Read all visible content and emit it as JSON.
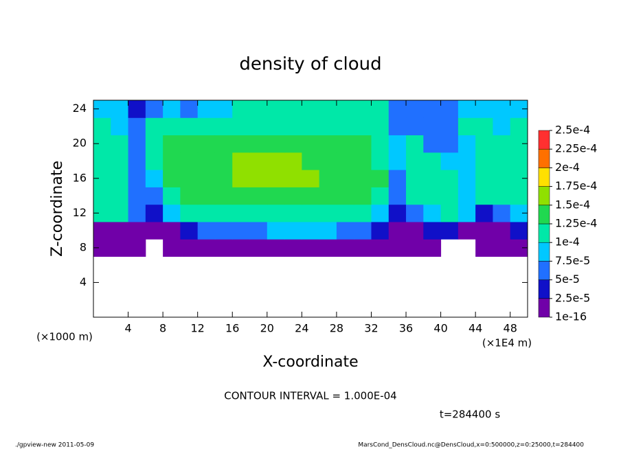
{
  "chart_data": {
    "type": "heatmap",
    "title": "density of cloud",
    "x_label": "X-coordinate",
    "y_label": "Z-coordinate",
    "x_unit_label": "(×1E4 m)",
    "y_unit_label": "(×1000 m)",
    "annotations": [
      "CONTOUR INTERVAL = 1.000E-04",
      "t=284400 s"
    ],
    "footer_left": "./gpview-new  2011-05-09",
    "footer_right": "MarsCond_DensCloud.nc@DensCloud,x=0:500000,z=0:25000,t=284400",
    "xlim": [
      0,
      50
    ],
    "ylim": [
      0,
      25
    ],
    "xticks": [
      4,
      8,
      12,
      16,
      20,
      24,
      28,
      32,
      36,
      40,
      44,
      48
    ],
    "yticks": [
      4,
      8,
      12,
      16,
      20,
      24
    ],
    "x": [
      1,
      3,
      5,
      7,
      9,
      11,
      13,
      15,
      17,
      19,
      21,
      23,
      25,
      27,
      29,
      31,
      33,
      35,
      37,
      39,
      41,
      43,
      45,
      47,
      49
    ],
    "z": [
      8,
      10,
      12,
      14,
      16,
      18,
      20,
      22,
      24
    ],
    "values": [
      [
        1e-05,
        1e-05,
        1e-05,
        null,
        1e-05,
        1e-05,
        1e-05,
        1e-05,
        1e-05,
        1e-05,
        1e-05,
        1e-05,
        1e-05,
        1e-05,
        1e-05,
        1e-05,
        1e-05,
        1e-05,
        1e-05,
        1e-05,
        null,
        null,
        1e-05,
        1e-05,
        1e-05
      ],
      [
        2e-05,
        2e-05,
        1e-05,
        1e-05,
        2e-05,
        3e-05,
        6e-05,
        6e-05,
        7e-05,
        7e-05,
        8e-05,
        8e-05,
        8e-05,
        8e-05,
        7e-05,
        6e-05,
        3e-05,
        2e-05,
        2e-05,
        4e-05,
        3e-05,
        2e-05,
        2e-05,
        2e-05,
        3e-05
      ],
      [
        0.00011,
        0.00011,
        6e-05,
        4e-05,
        8e-05,
        0.00011,
        0.00011,
        0.00011,
        0.00011,
        0.00011,
        0.00011,
        0.00011,
        0.00011,
        0.00011,
        0.00011,
        0.00011,
        9e-05,
        4e-05,
        6e-05,
        8e-05,
        0.0001,
        9e-05,
        3e-05,
        6e-05,
        9e-05
      ],
      [
        0.00012,
        0.00012,
        6e-05,
        5e-05,
        0.00012,
        0.00013,
        0.00013,
        0.00013,
        0.00013,
        0.00013,
        0.00013,
        0.00013,
        0.00013,
        0.00013,
        0.00013,
        0.00013,
        0.00012,
        6e-05,
        0.00011,
        0.00012,
        0.00012,
        8e-05,
        0.00012,
        0.00012,
        0.00012
      ],
      [
        0.00012,
        0.00012,
        5e-05,
        9e-05,
        0.00013,
        0.00014,
        0.00014,
        0.00014,
        0.00015,
        0.00015,
        0.00015,
        0.00015,
        0.00015,
        0.00014,
        0.00014,
        0.00014,
        0.00013,
        7e-05,
        0.00012,
        0.00012,
        0.00012,
        9e-05,
        0.00012,
        0.00012,
        0.00012
      ],
      [
        0.00012,
        0.00011,
        7e-05,
        0.0001,
        0.00013,
        0.00014,
        0.00014,
        0.00014,
        0.00015,
        0.00015,
        0.00015,
        0.00015,
        0.00014,
        0.00014,
        0.00014,
        0.00014,
        0.00012,
        8e-05,
        0.00011,
        0.00011,
        9e-05,
        8e-05,
        0.00012,
        0.00012,
        0.00012
      ],
      [
        0.00012,
        0.00011,
        6e-05,
        0.00012,
        0.00013,
        0.00013,
        0.00013,
        0.00014,
        0.00014,
        0.00014,
        0.00014,
        0.00014,
        0.00014,
        0.00014,
        0.00013,
        0.00013,
        0.00012,
        8e-05,
        0.0001,
        7e-05,
        6e-05,
        9e-05,
        0.00012,
        0.00012,
        0.00012
      ],
      [
        0.00011,
        9e-05,
        7e-05,
        0.00011,
        0.00012,
        0.00012,
        0.00012,
        0.00012,
        0.00012,
        0.00012,
        0.00012,
        0.00012,
        0.00012,
        0.00012,
        0.00012,
        0.00011,
        0.00011,
        7e-05,
        6e-05,
        5e-05,
        7e-05,
        0.0001,
        0.00011,
        9e-05,
        0.00011
      ],
      [
        9e-05,
        8e-05,
        4e-05,
        6e-05,
        8e-05,
        7e-05,
        8e-05,
        9e-05,
        0.0001,
        0.0001,
        0.0001,
        0.0001,
        0.0001,
        0.0001,
        0.0001,
        0.0001,
        0.0001,
        7e-05,
        6e-05,
        5e-05,
        6e-05,
        8e-05,
        9e-05,
        8e-05,
        8e-05
      ]
    ],
    "levels": [
      {
        "value": 1e-16,
        "label": "1e-16"
      },
      {
        "value": 2.5e-05,
        "label": "2.5e-5"
      },
      {
        "value": 5e-05,
        "label": "5e-5"
      },
      {
        "value": 7.5e-05,
        "label": "7.5e-5"
      },
      {
        "value": 0.0001,
        "label": "1e-4"
      },
      {
        "value": 0.000125,
        "label": "1.25e-4"
      },
      {
        "value": 0.00015,
        "label": "1.5e-4"
      },
      {
        "value": 0.000175,
        "label": "1.75e-4"
      },
      {
        "value": 0.0002,
        "label": "2e-4"
      },
      {
        "value": 0.000225,
        "label": "2.25e-4"
      },
      {
        "value": 0.00025,
        "label": "2.5e-4"
      }
    ],
    "colors": [
      "#7000a8",
      "#1010c8",
      "#2070ff",
      "#00c8ff",
      "#00e8a8",
      "#20d850",
      "#90e000",
      "#ffe000",
      "#ff7000",
      "#ff3030"
    ]
  }
}
